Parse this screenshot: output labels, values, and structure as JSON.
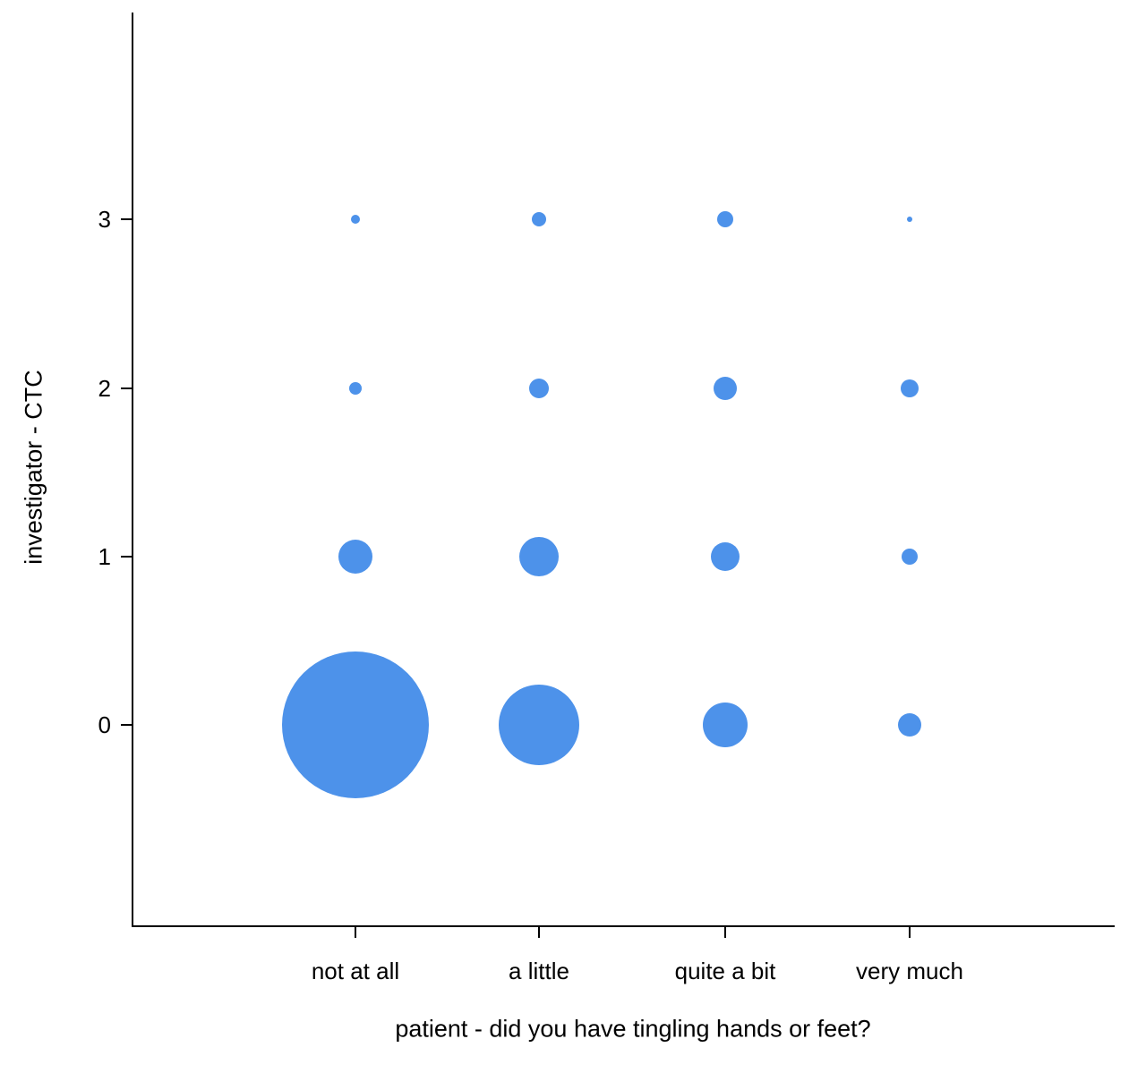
{
  "page": {
    "background_color": "#ffffff"
  },
  "chart_data": {
    "type": "scatter",
    "subtype": "bubble",
    "title": "",
    "xlabel": "patient - did you have tingling hands or feet?",
    "ylabel": "investigator - CTC",
    "x_categories": [
      "not at all",
      "a little",
      "quite a bit",
      "very much"
    ],
    "y_ticks": [
      0,
      1,
      2,
      3
    ],
    "bubble_color": "#4d92ea",
    "axis_color": "#000000",
    "grid": false,
    "legend_position": "none",
    "points": [
      {
        "x": "not at all",
        "y": 0,
        "radius_px": 82
      },
      {
        "x": "a little",
        "y": 0,
        "radius_px": 45
      },
      {
        "x": "quite a bit",
        "y": 0,
        "radius_px": 25
      },
      {
        "x": "very much",
        "y": 0,
        "radius_px": 13
      },
      {
        "x": "not at all",
        "y": 1,
        "radius_px": 19
      },
      {
        "x": "a little",
        "y": 1,
        "radius_px": 22
      },
      {
        "x": "quite a bit",
        "y": 1,
        "radius_px": 16
      },
      {
        "x": "very much",
        "y": 1,
        "radius_px": 9
      },
      {
        "x": "not at all",
        "y": 2,
        "radius_px": 7
      },
      {
        "x": "a little",
        "y": 2,
        "radius_px": 11
      },
      {
        "x": "quite a bit",
        "y": 2,
        "radius_px": 13
      },
      {
        "x": "very much",
        "y": 2,
        "radius_px": 10
      },
      {
        "x": "not at all",
        "y": 3,
        "radius_px": 5
      },
      {
        "x": "a little",
        "y": 3,
        "radius_px": 8
      },
      {
        "x": "quite a bit",
        "y": 3,
        "radius_px": 9
      },
      {
        "x": "very much",
        "y": 3,
        "radius_px": 3
      }
    ]
  }
}
